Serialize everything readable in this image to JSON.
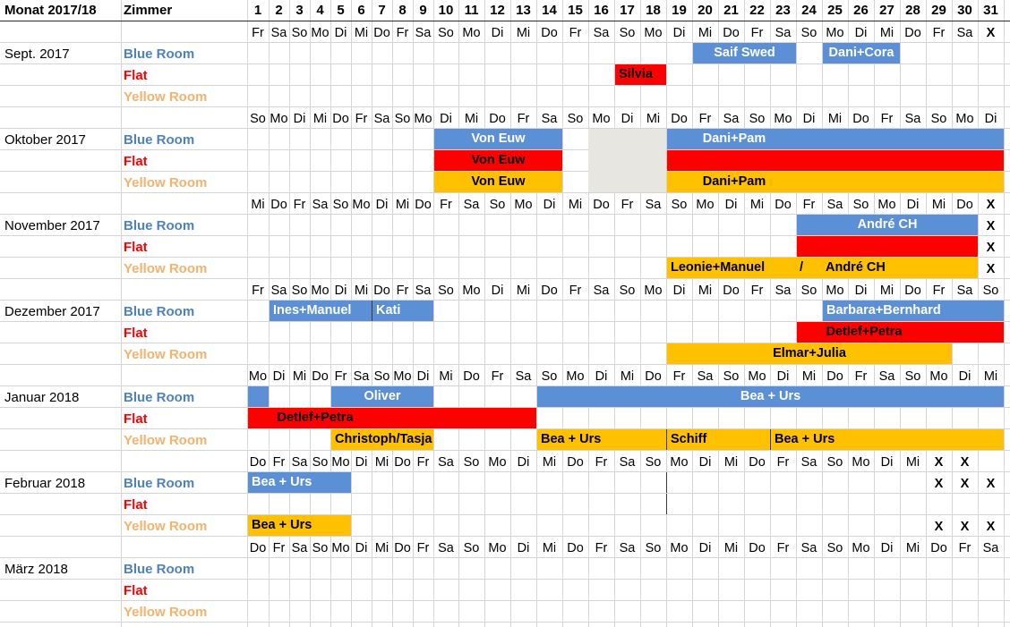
{
  "header": {
    "month_label": "Monat 2017/18",
    "room_label": "Zimmer",
    "days": [
      "1",
      "2",
      "3",
      "4",
      "5",
      "6",
      "7",
      "8",
      "9",
      "10",
      "11",
      "12",
      "13",
      "14",
      "15",
      "16",
      "17",
      "18",
      "19",
      "20",
      "21",
      "22",
      "23",
      "24",
      "25",
      "26",
      "27",
      "28",
      "29",
      "30",
      "31"
    ]
  },
  "colors": {
    "blue_room_text": "#4f81bd",
    "flat_text": "#ff0000",
    "yellow_room_text": "#f6b26b",
    "blue_bar": "#5b8fd6",
    "red_bar": "#ff0000",
    "yellow_bar": "#ffc000",
    "grey_fill": "#e7e6e0"
  },
  "rooms": [
    "Blue Room",
    "Flat",
    "Yellow Room"
  ],
  "weekday_rows": [
    [
      "Fr",
      "Sa",
      "So",
      "Mo",
      "Di",
      "Mi",
      "Do",
      "Fr",
      "Sa",
      "So",
      "Mo",
      "Di",
      "Mi",
      "Do",
      "Fr",
      "Sa",
      "So",
      "Mo",
      "Di",
      "Mi",
      "Do",
      "Fr",
      "Sa",
      "So",
      "Mo",
      "Di",
      "Mi",
      "Do",
      "Fr",
      "Sa",
      "X"
    ],
    [
      "So",
      "Mo",
      "Di",
      "Mi",
      "Do",
      "Fr",
      "Sa",
      "So",
      "Mo",
      "Di",
      "Mi",
      "Do",
      "Fr",
      "Sa",
      "So",
      "Mo",
      "Di",
      "Mi",
      "Do",
      "Fr",
      "Sa",
      "So",
      "Mo",
      "Di",
      "Mi",
      "Do",
      "Fr",
      "Sa",
      "So",
      "Mo",
      "Di"
    ],
    [
      "Mi",
      "Do",
      "Fr",
      "Sa",
      "So",
      "Mo",
      "Di",
      "Mi",
      "Do",
      "Fr",
      "Sa",
      "So",
      "Mo",
      "Di",
      "Mi",
      "Do",
      "Fr",
      "Sa",
      "So",
      "Mo",
      "Di",
      "Mi",
      "Do",
      "Fr",
      "Sa",
      "So",
      "Mo",
      "Di",
      "Mi",
      "Do",
      "X"
    ],
    [
      "Fr",
      "Sa",
      "So",
      "Mo",
      "Di",
      "Mi",
      "Do",
      "Fr",
      "Sa",
      "So",
      "Mo",
      "Di",
      "Mi",
      "Do",
      "Fr",
      "Sa",
      "So",
      "Mo",
      "Di",
      "Mi",
      "Do",
      "Fr",
      "Sa",
      "So",
      "Mo",
      "Di",
      "Mi",
      "Do",
      "Fr",
      "Sa",
      "So"
    ],
    [
      "Mo",
      "Di",
      "Mi",
      "Do",
      "Fr",
      "Sa",
      "So",
      "Mo",
      "Di",
      "Mi",
      "Do",
      "Fr",
      "Sa",
      "So",
      "Mo",
      "Di",
      "Mi",
      "Do",
      "Fr",
      "Sa",
      "So",
      "Mo",
      "Di",
      "Mi",
      "Do",
      "Fr",
      "Sa",
      "So",
      "Mo",
      "Di",
      "Mi"
    ],
    [
      "Do",
      "Fr",
      "Sa",
      "So",
      "Mo",
      "Di",
      "Mi",
      "Do",
      "Fr",
      "Sa",
      "So",
      "Mo",
      "Di",
      "Mi",
      "Do",
      "Fr",
      "Sa",
      "So",
      "Mo",
      "Di",
      "Mi",
      "Do",
      "Fr",
      "Sa",
      "So",
      "Mo",
      "Di",
      "Mi",
      "X",
      "X",
      ""
    ],
    [
      "Do",
      "Fr",
      "Sa",
      "So",
      "Mo",
      "Di",
      "Mi",
      "Do",
      "Fr",
      "Sa",
      "So",
      "Mo",
      "Di",
      "Mi",
      "Do",
      "Fr",
      "Sa",
      "So",
      "Mo",
      "Di",
      "Mi",
      "Do",
      "Fr",
      "Sa",
      "So",
      "Mo",
      "Di",
      "Mi",
      "Do",
      "Fr",
      "Sa"
    ]
  ],
  "months": [
    {
      "name": "Sept. 2017",
      "bookings": [
        {
          "room": 0,
          "start": 20,
          "end": 23,
          "label": "Saif Swed",
          "color": "blue"
        },
        {
          "room": 0,
          "start": 25,
          "end": 27,
          "label": "Dani+Cora",
          "color": "blue"
        },
        {
          "room": 1,
          "start": 17,
          "end": 18,
          "label": "Silvia",
          "color": "red",
          "align": "left"
        }
      ],
      "marks": []
    },
    {
      "name": "Oktober 2017",
      "bookings": [
        {
          "room": 0,
          "start": 10,
          "end": 14,
          "label": "Von Euw",
          "color": "blue"
        },
        {
          "room": 0,
          "start": 19,
          "end": 31,
          "label": "Dani+Pam",
          "color": "blue",
          "align": "label-left"
        },
        {
          "room": 1,
          "start": 10,
          "end": 14,
          "label": "Von Euw",
          "color": "red"
        },
        {
          "room": 1,
          "start": 19,
          "end": 31,
          "label": "",
          "color": "red"
        },
        {
          "room": 2,
          "start": 10,
          "end": 14,
          "label": "Von Euw",
          "color": "yellow"
        },
        {
          "room": 2,
          "start": 19,
          "end": 31,
          "label": "Dani+Pam",
          "color": "yellow",
          "align": "label-left"
        }
      ],
      "grey": {
        "start": 16,
        "end": 18
      },
      "marks": []
    },
    {
      "name": "November 2017",
      "bookings": [
        {
          "room": 0,
          "start": 24,
          "end": 30,
          "label": "André CH",
          "color": "blue"
        },
        {
          "room": 1,
          "start": 24,
          "end": 30,
          "label": "",
          "color": "red"
        },
        {
          "room": 2,
          "start": 19,
          "end": 30,
          "label": "Leonie+Manuel",
          "color": "yellow",
          "align": "left"
        }
      ],
      "inline_texts": [
        {
          "room": 2,
          "day": 24,
          "text": "/"
        },
        {
          "room": 2,
          "day": 25,
          "text": "André CH"
        }
      ],
      "marks": [
        {
          "room": 0,
          "day": 31,
          "text": "X"
        },
        {
          "room": 1,
          "day": 31,
          "text": "X"
        },
        {
          "room": 2,
          "day": 31,
          "text": "X"
        }
      ]
    },
    {
      "name": "Dezember 2017",
      "bookings": [
        {
          "room": 0,
          "start": 2,
          "end": 6,
          "label": "Ines+Manuel",
          "color": "blue",
          "align": "left"
        },
        {
          "room": 0,
          "start": 7,
          "end": 9,
          "label": "Kati",
          "color": "blue",
          "align": "left"
        },
        {
          "room": 0,
          "start": 25,
          "end": 31,
          "label": "Barbara+Bernhard",
          "color": "blue",
          "align": "left"
        },
        {
          "room": 1,
          "start": 24,
          "end": 31,
          "label": "Detlef+Petra",
          "color": "red",
          "align": "label-left"
        },
        {
          "room": 2,
          "start": 19,
          "end": 29,
          "label": "Elmar+Julia",
          "color": "yellow"
        }
      ],
      "marks": []
    },
    {
      "name": "Januar 2018",
      "bookings": [
        {
          "room": 0,
          "start": 1,
          "end": 1,
          "label": "",
          "color": "blue"
        },
        {
          "room": 0,
          "start": 5,
          "end": 9,
          "label": "Oliver",
          "color": "blue"
        },
        {
          "room": 0,
          "start": 14,
          "end": 31,
          "label": "Bea + Urs",
          "color": "blue"
        },
        {
          "room": 1,
          "start": 1,
          "end": 13,
          "label": "Detlef+Petra",
          "color": "red",
          "align": "label-left"
        },
        {
          "room": 2,
          "start": 5,
          "end": 9,
          "label": "Christoph/Tasja",
          "color": "yellow",
          "align": "left"
        },
        {
          "room": 2,
          "start": 14,
          "end": 18,
          "label": "Bea + Urs",
          "color": "yellow",
          "align": "left"
        },
        {
          "room": 2,
          "start": 19,
          "end": 22,
          "label": "Schiff",
          "color": "yellow",
          "align": "left"
        },
        {
          "room": 2,
          "start": 23,
          "end": 31,
          "label": "Bea + Urs",
          "color": "yellow",
          "align": "left"
        }
      ],
      "marks": []
    },
    {
      "name": "Februar 2018",
      "bookings": [
        {
          "room": 0,
          "start": 1,
          "end": 5,
          "label": "Bea + Urs",
          "color": "blue",
          "align": "left"
        },
        {
          "room": 2,
          "start": 1,
          "end": 5,
          "label": "Bea + Urs",
          "color": "yellow",
          "align": "left"
        }
      ],
      "marks": [
        {
          "room": 0,
          "day": 29,
          "text": "X"
        },
        {
          "room": 0,
          "day": 30,
          "text": "X"
        },
        {
          "room": 0,
          "day": 31,
          "text": "X"
        },
        {
          "room": 2,
          "day": 29,
          "text": "X"
        },
        {
          "room": 2,
          "day": 30,
          "text": "X"
        },
        {
          "room": 2,
          "day": 31,
          "text": "X"
        }
      ]
    },
    {
      "name": "März 2018",
      "bookings": [],
      "marks": []
    }
  ]
}
